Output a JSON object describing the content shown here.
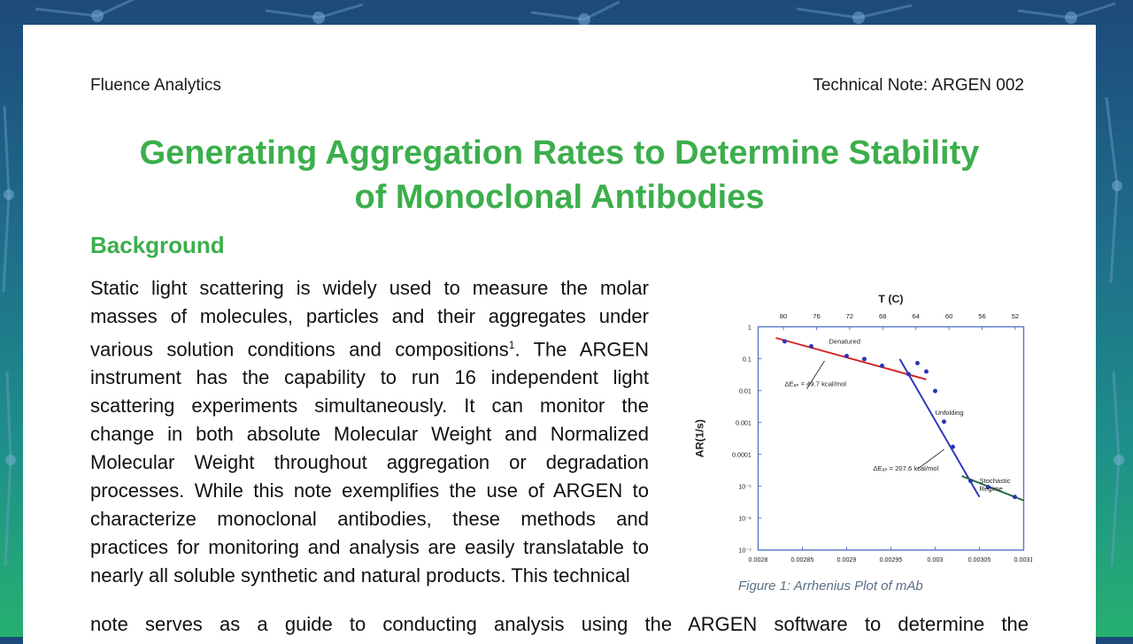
{
  "header": {
    "left": "Fluence Analytics",
    "right": "Technical Note: ARGEN 002"
  },
  "title_line1": "Generating Aggregation Rates to Determine Stability",
  "title_line2": "of Monoclonal Antibodies",
  "section_heading": "Background",
  "body": {
    "part1": "Static light scattering is widely used to measure the molar masses of molecules, particles and their aggregates under various solution conditions and compositions",
    "sup": "1",
    "part2": ". The ARGEN instrument has the capability to run 16 independent light scattering experiments simultaneously. It can monitor the change in both absolute Molecular Weight and Normalized Molecular Weight throughout aggregation or degradation processes. While this note exemplifies the use of ARGEN to characterize monoclonal antibodies, these methods and practices for monitoring and analysis are easily translatable to nearly all soluble synthetic and natural products. This technical",
    "tail": "note serves as a guide to conducting analysis using the ARGEN software to determine the"
  },
  "figure_caption": "Figure 1: Arrhenius Plot of mAb",
  "chart_data": {
    "type": "scatter",
    "title": "",
    "xlabel": "",
    "ylabel": "AR(1/s)",
    "top_axis_label": "T (C)",
    "x_scale": "inverse temperature (1/K)",
    "y_scale": "log",
    "xlim": [
      0.0028,
      0.0031
    ],
    "ylim": [
      1e-08,
      1
    ],
    "x_tick_labels": [
      "0.0028",
      "0.00285",
      "0.0029",
      "0.00295",
      "0.003",
      "0.00305",
      "0.0031"
    ],
    "y_tick_labels": [
      "1",
      "0.1",
      "0.01",
      "0.001",
      "0.0001",
      "10⁻⁵",
      "10⁻⁶",
      "10⁻⁷"
    ],
    "top_tick_labels": [
      "80",
      "76",
      "72",
      "68",
      "64",
      "60",
      "56",
      "52"
    ],
    "grid": false,
    "points": [
      {
        "x": 0.00283,
        "y": 0.3
      },
      {
        "x": 0.00286,
        "y": 0.2
      },
      {
        "x": 0.0029,
        "y": 0.09
      },
      {
        "x": 0.00292,
        "y": 0.07
      },
      {
        "x": 0.00294,
        "y": 0.04
      },
      {
        "x": 0.00297,
        "y": 0.02
      },
      {
        "x": 0.00298,
        "y": 0.05
      },
      {
        "x": 0.00299,
        "y": 0.025
      },
      {
        "x": 0.003,
        "y": 0.005
      },
      {
        "x": 0.00301,
        "y": 0.0004
      },
      {
        "x": 0.00302,
        "y": 5e-05
      },
      {
        "x": 0.00304,
        "y": 3e-06
      },
      {
        "x": 0.00306,
        "y": 1.8e-06
      },
      {
        "x": 0.00309,
        "y": 8e-07
      }
    ],
    "fits": [
      {
        "name": "Denatured",
        "color": "#d42020",
        "x": [
          0.00282,
          0.00299
        ],
        "y": [
          0.4,
          0.013
        ]
      },
      {
        "name": "Unfolding",
        "color": "#2a34b8",
        "x": [
          0.00296,
          0.00305
        ],
        "y": [
          0.07,
          8e-07
        ]
      },
      {
        "name": "Stochastic Regime",
        "color": "#1f6b3a",
        "x": [
          0.00303,
          0.0031
        ],
        "y": [
          4.5e-06,
          6e-07
        ]
      }
    ],
    "annotations": [
      {
        "text": "Denatured",
        "x": 0.00288,
        "y": 0.25
      },
      {
        "text": "ΔEₐₙ = 49.7 kcal/mol",
        "x": 0.00283,
        "y": 0.0075
      },
      {
        "text": "Unfolding",
        "x": 0.003,
        "y": 0.0007
      },
      {
        "text": "ΔEₐₙ = 207.6 kcal/mol",
        "x": 0.00293,
        "y": 7e-06
      },
      {
        "text": "Stochastic",
        "x": 0.00305,
        "y": 2.5e-06
      },
      {
        "text": "Regime",
        "x": 0.00305,
        "y": 1.3e-06
      }
    ],
    "colors": {
      "frame": "#5a78c8",
      "points": "#2a34b8"
    }
  }
}
